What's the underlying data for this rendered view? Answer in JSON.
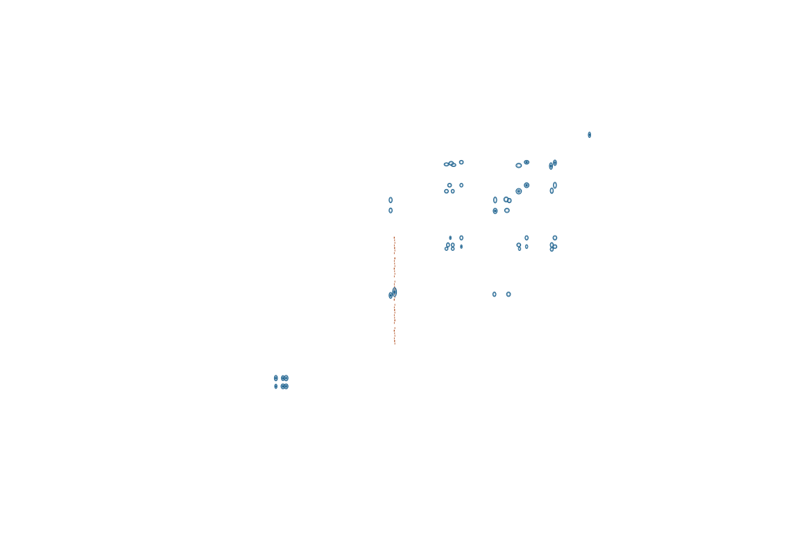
{
  "chart_data": {
    "type": "contour",
    "axes_shown": false,
    "grid": false,
    "legend": "none",
    "colors": {
      "positive_contour": "#1b5f8c",
      "positive_contour_light": "#6a9ab8",
      "negative_contour": "#b5562a"
    },
    "x_range": [
      0,
      1
    ],
    "y_range": [
      0,
      1
    ],
    "peaks": [
      {
        "x": 0.75,
        "y": 0.754,
        "rx": 0.0015,
        "ry": 0.005,
        "level": "strong"
      },
      {
        "x": 0.568,
        "y": 0.7,
        "rx": 0.003,
        "ry": 0.003,
        "level": "medium"
      },
      {
        "x": 0.574,
        "y": 0.702,
        "rx": 0.003,
        "ry": 0.0035,
        "level": "medium"
      },
      {
        "x": 0.577,
        "y": 0.699,
        "rx": 0.003,
        "ry": 0.003,
        "level": "medium"
      },
      {
        "x": 0.587,
        "y": 0.704,
        "rx": 0.0025,
        "ry": 0.0035,
        "level": "medium"
      },
      {
        "x": 0.66,
        "y": 0.698,
        "rx": 0.0035,
        "ry": 0.004,
        "level": "medium"
      },
      {
        "x": 0.67,
        "y": 0.704,
        "rx": 0.003,
        "ry": 0.0035,
        "level": "strong"
      },
      {
        "x": 0.701,
        "y": 0.697,
        "rx": 0.002,
        "ry": 0.006,
        "level": "strong"
      },
      {
        "x": 0.706,
        "y": 0.703,
        "rx": 0.002,
        "ry": 0.005,
        "level": "strong"
      },
      {
        "x": 0.572,
        "y": 0.662,
        "rx": 0.0025,
        "ry": 0.0035,
        "level": "medium"
      },
      {
        "x": 0.587,
        "y": 0.662,
        "rx": 0.002,
        "ry": 0.0035,
        "level": "medium"
      },
      {
        "x": 0.568,
        "y": 0.651,
        "rx": 0.0025,
        "ry": 0.0035,
        "level": "medium"
      },
      {
        "x": 0.576,
        "y": 0.651,
        "rx": 0.002,
        "ry": 0.0035,
        "level": "medium"
      },
      {
        "x": 0.67,
        "y": 0.662,
        "rx": 0.003,
        "ry": 0.0045,
        "level": "strong"
      },
      {
        "x": 0.66,
        "y": 0.651,
        "rx": 0.0035,
        "ry": 0.005,
        "level": "strong"
      },
      {
        "x": 0.706,
        "y": 0.662,
        "rx": 0.002,
        "ry": 0.0055,
        "level": "medium"
      },
      {
        "x": 0.702,
        "y": 0.652,
        "rx": 0.002,
        "ry": 0.005,
        "level": "medium"
      },
      {
        "x": 0.497,
        "y": 0.635,
        "rx": 0.002,
        "ry": 0.005,
        "level": "medium"
      },
      {
        "x": 0.497,
        "y": 0.616,
        "rx": 0.002,
        "ry": 0.0045,
        "level": "medium"
      },
      {
        "x": 0.63,
        "y": 0.635,
        "rx": 0.002,
        "ry": 0.0055,
        "level": "medium"
      },
      {
        "x": 0.644,
        "y": 0.636,
        "rx": 0.003,
        "ry": 0.0045,
        "level": "medium"
      },
      {
        "x": 0.648,
        "y": 0.634,
        "rx": 0.0025,
        "ry": 0.004,
        "level": "medium"
      },
      {
        "x": 0.63,
        "y": 0.615,
        "rx": 0.0025,
        "ry": 0.005,
        "level": "strong"
      },
      {
        "x": 0.645,
        "y": 0.616,
        "rx": 0.003,
        "ry": 0.004,
        "level": "medium"
      },
      {
        "x": 0.573,
        "y": 0.566,
        "rx": 0.0008,
        "ry": 0.003,
        "level": "strong"
      },
      {
        "x": 0.587,
        "y": 0.566,
        "rx": 0.002,
        "ry": 0.004,
        "level": "medium"
      },
      {
        "x": 0.57,
        "y": 0.553,
        "rx": 0.002,
        "ry": 0.004,
        "level": "medium"
      },
      {
        "x": 0.576,
        "y": 0.553,
        "rx": 0.002,
        "ry": 0.0035,
        "level": "medium"
      },
      {
        "x": 0.568,
        "y": 0.546,
        "rx": 0.002,
        "ry": 0.003,
        "level": "medium"
      },
      {
        "x": 0.576,
        "y": 0.546,
        "rx": 0.002,
        "ry": 0.003,
        "level": "medium"
      },
      {
        "x": 0.587,
        "y": 0.55,
        "rx": 0.001,
        "ry": 0.003,
        "level": "strong"
      },
      {
        "x": 0.67,
        "y": 0.566,
        "rx": 0.002,
        "ry": 0.004,
        "level": "medium"
      },
      {
        "x": 0.66,
        "y": 0.553,
        "rx": 0.0025,
        "ry": 0.0035,
        "level": "medium"
      },
      {
        "x": 0.67,
        "y": 0.55,
        "rx": 0.0015,
        "ry": 0.0035,
        "level": "medium"
      },
      {
        "x": 0.661,
        "y": 0.546,
        "rx": 0.0015,
        "ry": 0.003,
        "level": "medium"
      },
      {
        "x": 0.706,
        "y": 0.566,
        "rx": 0.0025,
        "ry": 0.004,
        "level": "medium"
      },
      {
        "x": 0.702,
        "y": 0.553,
        "rx": 0.002,
        "ry": 0.0045,
        "level": "medium"
      },
      {
        "x": 0.706,
        "y": 0.55,
        "rx": 0.0025,
        "ry": 0.0035,
        "level": "medium"
      },
      {
        "x": 0.702,
        "y": 0.545,
        "rx": 0.002,
        "ry": 0.0035,
        "level": "medium"
      },
      {
        "x": 0.629,
        "y": 0.463,
        "rx": 0.002,
        "ry": 0.004,
        "level": "medium"
      },
      {
        "x": 0.647,
        "y": 0.463,
        "rx": 0.0025,
        "ry": 0.004,
        "level": "medium"
      },
      {
        "x": 0.497,
        "y": 0.461,
        "rx": 0.002,
        "ry": 0.0055,
        "level": "strong"
      },
      {
        "x": 0.502,
        "y": 0.467,
        "rx": 0.0025,
        "ry": 0.008,
        "level": "strong"
      },
      {
        "x": 0.351,
        "y": 0.31,
        "rx": 0.002,
        "ry": 0.005,
        "level": "strong"
      },
      {
        "x": 0.351,
        "y": 0.295,
        "rx": 0.0015,
        "ry": 0.004,
        "level": "strong"
      },
      {
        "x": 0.36,
        "y": 0.31,
        "rx": 0.002,
        "ry": 0.0045,
        "level": "strong"
      },
      {
        "x": 0.364,
        "y": 0.31,
        "rx": 0.0025,
        "ry": 0.005,
        "level": "strong"
      },
      {
        "x": 0.36,
        "y": 0.295,
        "rx": 0.0025,
        "ry": 0.0045,
        "level": "strong"
      },
      {
        "x": 0.364,
        "y": 0.295,
        "rx": 0.0025,
        "ry": 0.0045,
        "level": "strong"
      }
    ],
    "ridge": {
      "x": 0.502,
      "y_from": 0.37,
      "y_to": 0.568
    }
  }
}
